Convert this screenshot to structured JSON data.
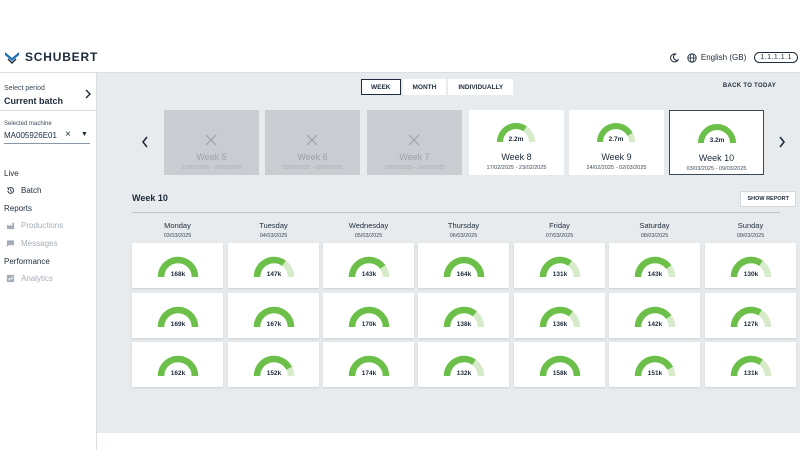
{
  "header": {
    "brand": "SCHUBERT",
    "language": "English (GB)",
    "user_chip": "1.1.1.1.1"
  },
  "sidebar": {
    "period_label": "Select period",
    "period_value": "Current batch",
    "machine_label": "Selected machine",
    "machine_value": "MA005926E01",
    "sections": [
      {
        "label": "Live",
        "items": [
          {
            "label": "Batch",
            "icon": "history-icon",
            "enabled": true
          }
        ]
      },
      {
        "label": "Reports",
        "items": [
          {
            "label": "Productions",
            "icon": "factory-icon",
            "enabled": false
          },
          {
            "label": "Messages",
            "icon": "message-icon",
            "enabled": false
          }
        ]
      },
      {
        "label": "Performance",
        "items": [
          {
            "label": "Analytics",
            "icon": "chart-icon",
            "enabled": false
          }
        ]
      }
    ]
  },
  "main": {
    "tabs": [
      {
        "label": "WEEK",
        "active": true
      },
      {
        "label": "MONTH",
        "active": false
      },
      {
        "label": "INDIVIDUALLY",
        "active": false
      }
    ],
    "back_to_today": "BACK TO TODAY",
    "weeks": [
      {
        "name": "Week 5",
        "range": "27/01/2025 - 02/02/2025",
        "value": "",
        "fraction": 0,
        "disabled": true,
        "selected": false
      },
      {
        "name": "Week 6",
        "range": "03/02/2025 - 09/02/2025",
        "value": "",
        "fraction": 0,
        "disabled": true,
        "selected": false
      },
      {
        "name": "Week 7",
        "range": "10/02/2025 - 16/02/2025",
        "value": "",
        "fraction": 0,
        "disabled": true,
        "selected": false
      },
      {
        "name": "Week 8",
        "range": "17/02/2025 - 23/02/2025",
        "value": "2.2m",
        "fraction": 0.69,
        "disabled": false,
        "selected": false
      },
      {
        "name": "Week 9",
        "range": "24/02/2025 - 02/03/2025",
        "value": "2.7m",
        "fraction": 0.84,
        "disabled": false,
        "selected": false
      },
      {
        "name": "Week 10",
        "range": "03/03/2025 - 09/03/2025",
        "value": "3.2m",
        "fraction": 1.0,
        "disabled": false,
        "selected": true
      }
    ],
    "selected_week_title": "Week 10",
    "show_report": "SHOW REPORT",
    "days": [
      {
        "name": "Monday",
        "date": "03/03/2025",
        "batches": [
          {
            "value": "168k",
            "fraction": 1.0
          },
          {
            "value": "169k",
            "fraction": 1.0
          },
          {
            "value": "162k",
            "fraction": 1.0
          }
        ]
      },
      {
        "name": "Tuesday",
        "date": "04/03/2025",
        "batches": [
          {
            "value": "147k",
            "fraction": 0.7
          },
          {
            "value": "167k",
            "fraction": 1.0
          },
          {
            "value": "152k",
            "fraction": 0.85
          }
        ]
      },
      {
        "name": "Wednesday",
        "date": "05/03/2025",
        "batches": [
          {
            "value": "143k",
            "fraction": 0.8
          },
          {
            "value": "170k",
            "fraction": 1.0
          },
          {
            "value": "174k",
            "fraction": 1.0
          }
        ]
      },
      {
        "name": "Thursday",
        "date": "06/03/2025",
        "batches": [
          {
            "value": "164k",
            "fraction": 1.0
          },
          {
            "value": "138k",
            "fraction": 0.72
          },
          {
            "value": "132k",
            "fraction": 0.7
          }
        ]
      },
      {
        "name": "Friday",
        "date": "07/03/2025",
        "batches": [
          {
            "value": "131k",
            "fraction": 0.7
          },
          {
            "value": "136k",
            "fraction": 0.72
          },
          {
            "value": "158k",
            "fraction": 1.0
          }
        ]
      },
      {
        "name": "Saturday",
        "date": "08/03/2025",
        "batches": [
          {
            "value": "143k",
            "fraction": 0.8
          },
          {
            "value": "142k",
            "fraction": 0.8
          },
          {
            "value": "151k",
            "fraction": 0.85
          }
        ]
      },
      {
        "name": "Sunday",
        "date": "09/03/2025",
        "batches": [
          {
            "value": "130k",
            "fraction": 0.7
          },
          {
            "value": "127k",
            "fraction": 0.68
          },
          {
            "value": "131k",
            "fraction": 0.7
          }
        ]
      }
    ]
  },
  "colors": {
    "gauge_fill": "#6cc04a",
    "gauge_track": "#d6ebc9",
    "text": "#1d2b3a",
    "main_bg": "#e8ebee"
  }
}
